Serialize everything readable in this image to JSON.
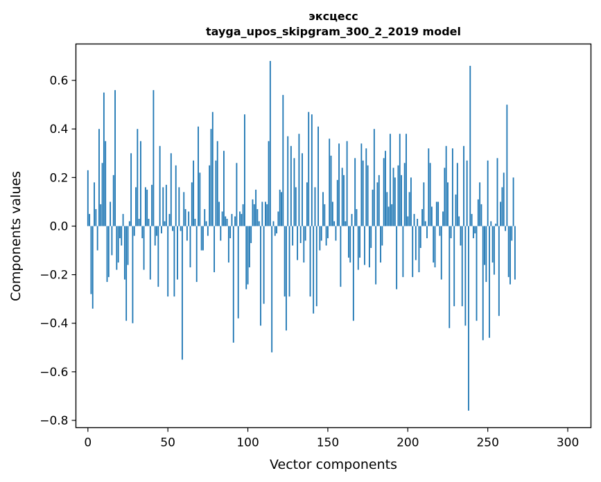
{
  "chart_data": {
    "type": "bar",
    "title": "эксцесс",
    "subtitle": "tayga_upos_skipgram_300_2_2019 model",
    "xlabel": "Vector components",
    "ylabel": "Components values",
    "xlim": [
      -7.5,
      314.5
    ],
    "ylim": [
      -0.83,
      0.75
    ],
    "xticks": [
      0,
      50,
      100,
      150,
      200,
      250,
      300
    ],
    "xtick_labels": [
      "0",
      "50",
      "100",
      "150",
      "200",
      "250",
      "300"
    ],
    "yticks": [
      -0.8,
      -0.6,
      -0.4,
      -0.2,
      0.0,
      0.2,
      0.4,
      0.6
    ],
    "ytick_labels": [
      "−0.8",
      "−0.6",
      "−0.4",
      "−0.2",
      "0.0",
      "0.2",
      "0.4",
      "0.6"
    ],
    "grid": false,
    "bar_color": "#1f77b4",
    "values": [
      0.23,
      0.05,
      -0.28,
      -0.34,
      0.18,
      0.07,
      -0.1,
      0.4,
      0.09,
      0.26,
      0.55,
      0.35,
      -0.23,
      -0.21,
      0.1,
      -0.12,
      0.21,
      0.56,
      -0.18,
      -0.15,
      -0.05,
      -0.08,
      0.05,
      -0.22,
      -0.39,
      -0.16,
      0.02,
      0.3,
      -0.4,
      -0.04,
      0.16,
      0.4,
      0.03,
      0.35,
      -0.05,
      -0.18,
      0.16,
      0.15,
      0.03,
      -0.22,
      0.17,
      0.56,
      -0.08,
      -0.04,
      -0.25,
      0.33,
      -0.03,
      0.16,
      0.02,
      0.17,
      -0.29,
      0.05,
      0.3,
      -0.02,
      -0.29,
      0.25,
      -0.22,
      0.16,
      -0.02,
      -0.55,
      0.14,
      0.07,
      -0.06,
      0.06,
      -0.17,
      0.18,
      0.27,
      0.03,
      -0.23,
      0.41,
      0.22,
      -0.1,
      -0.1,
      0.07,
      0.02,
      -0.04,
      0.25,
      0.4,
      0.47,
      -0.19,
      0.27,
      0.35,
      0.1,
      -0.06,
      0.06,
      0.31,
      0.04,
      0.03,
      -0.15,
      -0.05,
      0.05,
      -0.48,
      0.04,
      0.26,
      -0.38,
      0.06,
      0.05,
      0.09,
      0.46,
      -0.26,
      -0.24,
      -0.17,
      -0.07,
      0.11,
      0.09,
      0.15,
      0.07,
      0.02,
      -0.41,
      0.1,
      -0.32,
      0.1,
      0.09,
      0.35,
      0.68,
      -0.52,
      0.02,
      -0.04,
      -0.03,
      0.06,
      0.15,
      0.14,
      0.54,
      -0.29,
      -0.43,
      0.37,
      -0.29,
      0.33,
      -0.08,
      0.28,
      0.16,
      -0.14,
      0.38,
      -0.07,
      0.3,
      -0.15,
      -0.06,
      0.18,
      0.47,
      -0.29,
      0.46,
      -0.36,
      0.16,
      -0.33,
      0.41,
      -0.1,
      -0.06,
      0.14,
      0.09,
      -0.08,
      -0.05,
      0.36,
      0.29,
      0.1,
      0.02,
      -0.06,
      0.19,
      0.34,
      -0.25,
      0.24,
      0.21,
      0.02,
      0.35,
      -0.13,
      -0.15,
      0.05,
      -0.39,
      0.28,
      0.07,
      -0.18,
      -0.13,
      0.34,
      0.27,
      -0.16,
      0.32,
      0.25,
      -0.17,
      -0.09,
      0.15,
      0.4,
      -0.24,
      0.18,
      0.21,
      -0.15,
      -0.08,
      0.28,
      0.31,
      0.14,
      0.08,
      0.38,
      0.09,
      0.24,
      0.2,
      -0.26,
      0.25,
      0.38,
      0.21,
      -0.21,
      0.26,
      0.38,
      0.04,
      0.14,
      0.2,
      -0.21,
      0.05,
      -0.14,
      0.03,
      -0.19,
      -0.09,
      0.07,
      0.18,
      0.02,
      -0.05,
      0.32,
      0.26,
      0.08,
      -0.15,
      -0.17,
      0.1,
      0.1,
      -0.04,
      -0.22,
      0.06,
      0.24,
      0.33,
      0.18,
      -0.42,
      -0.05,
      0.32,
      -0.33,
      0.13,
      0.26,
      0.04,
      -0.08,
      -0.33,
      0.33,
      -0.41,
      0.27,
      -0.76,
      0.66,
      0.05,
      -0.05,
      -0.03,
      -0.39,
      0.11,
      0.18,
      0.09,
      -0.47,
      -0.16,
      -0.23,
      0.27,
      -0.46,
      0.02,
      -0.15,
      -0.2,
      0.01,
      0.28,
      -0.37,
      0.1,
      0.16,
      0.22,
      -0.02,
      0.5,
      -0.21,
      -0.24,
      -0.06,
      0.2,
      -0.22
    ],
    "value_count_note": ""
  }
}
